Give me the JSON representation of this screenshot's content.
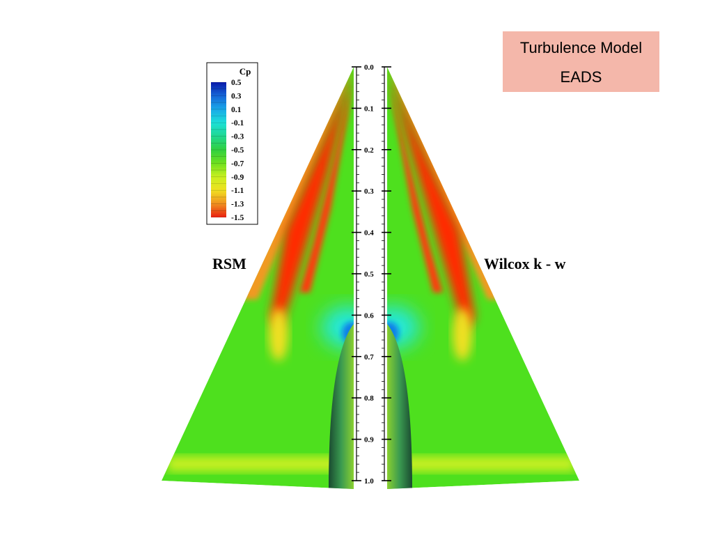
{
  "title_box": {
    "line1": "Turbulence Model",
    "line2": "EADS"
  },
  "left_label": "RSM",
  "right_label": "Wilcox k - w",
  "legend": {
    "title": "Cp",
    "levels": [
      "0.5",
      "0.3",
      "0.1",
      "-0.1",
      "-0.3",
      "-0.5",
      "-0.7",
      "-0.9",
      "-1.1",
      "-1.3",
      "-1.5"
    ],
    "colors": [
      "#0a1aa8",
      "#1565d8",
      "#18a8e8",
      "#1ce0d8",
      "#20d890",
      "#30d040",
      "#6ee020",
      "#c8f020",
      "#f0e020",
      "#f09020",
      "#e82010"
    ]
  },
  "axis": {
    "ticks": [
      "0.0",
      "0.1",
      "0.2",
      "0.3",
      "0.4",
      "0.5",
      "0.6",
      "0.7",
      "0.8",
      "0.9",
      "1.0"
    ]
  },
  "colors": {
    "title_bg": "#f4b7aa",
    "base_green": "#4ee01e",
    "peak_red": "#ff2200",
    "suction_cyan": "#20e8e0"
  }
}
